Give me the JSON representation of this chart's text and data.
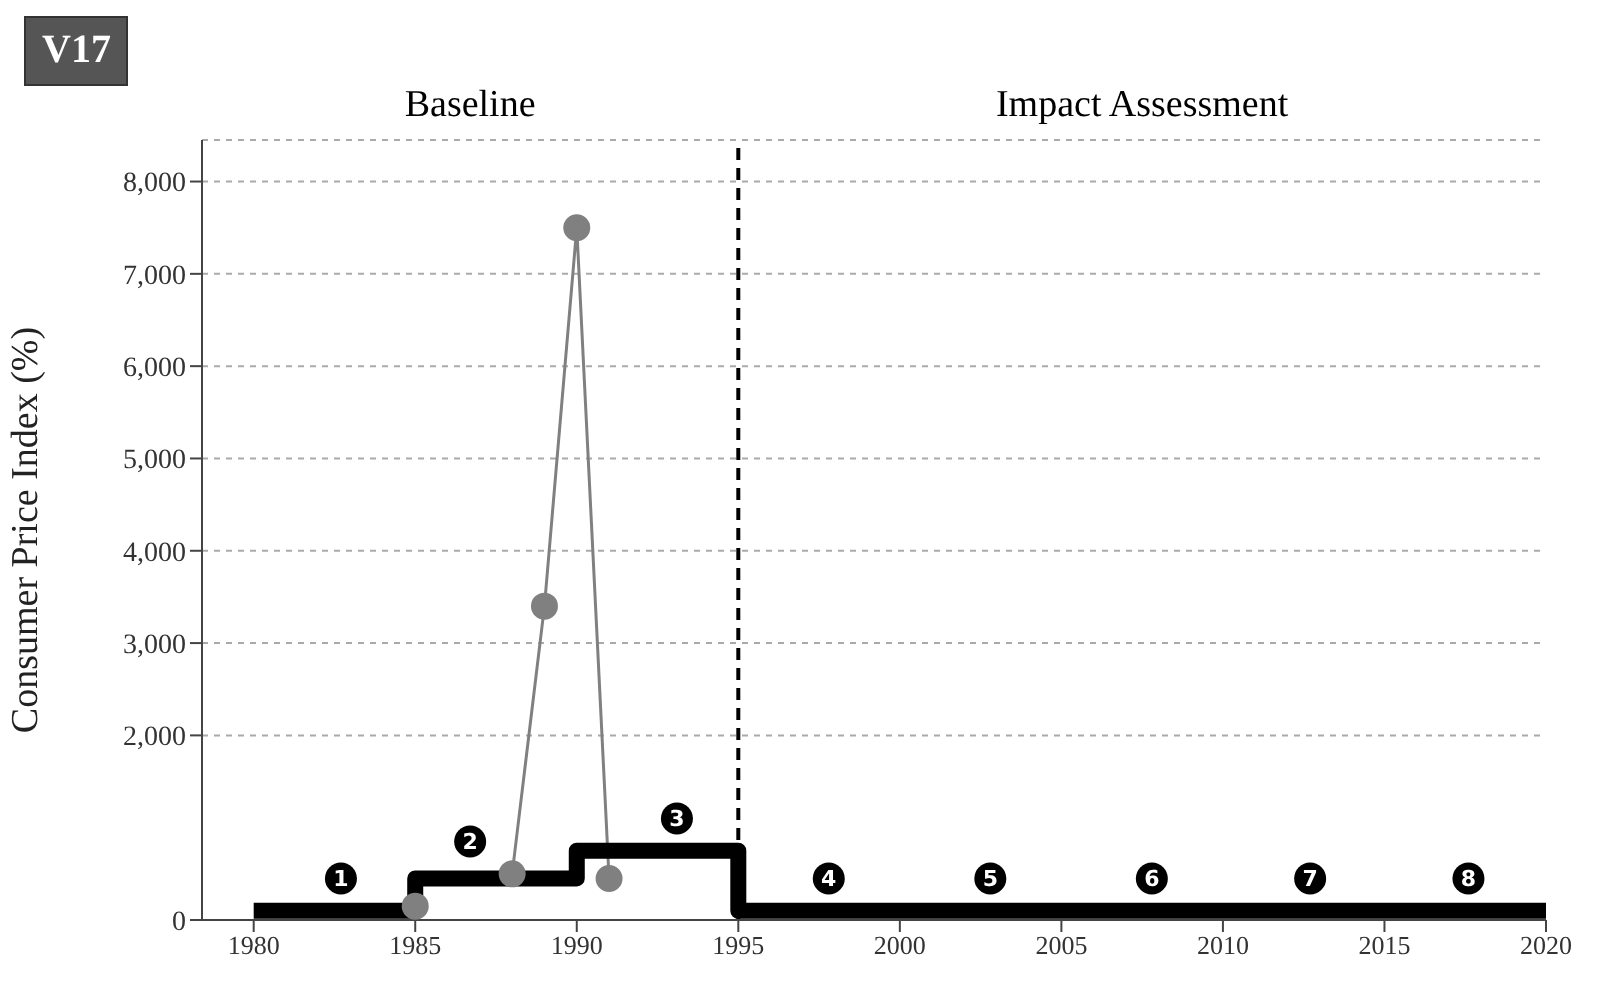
{
  "chart_data": {
    "type": "line",
    "title": "V17",
    "ylabel": "Consumer Price Index (%)",
    "xlim": [
      1978.4,
      2020
    ],
    "xticks": [
      1980,
      1985,
      1990,
      1995,
      2000,
      2005,
      2010,
      2015,
      2020
    ],
    "ylim": [
      0,
      8450
    ],
    "yticks": [
      0,
      {
        "value": 2000,
        "label": "2,000"
      },
      {
        "value": 3000,
        "label": "3,000"
      },
      {
        "value": 4000,
        "label": "4,000"
      },
      {
        "value": 5000,
        "label": "5,000"
      },
      {
        "value": 6000,
        "label": "6,000"
      },
      {
        "value": 7000,
        "label": "7,000"
      },
      {
        "value": 8000,
        "label": "8,000"
      }
    ],
    "grid": "y",
    "series": [
      {
        "color": "#808080",
        "marker": "circle",
        "x": [
          1985,
          1986,
          1987,
          1988,
          1989,
          1990,
          1991
        ],
        "values": [
          150,
          null,
          null,
          500,
          3400,
          7500,
          450
        ]
      },
      {
        "type": "step",
        "color": "#000000",
        "marker": "none",
        "x": [
          1980,
          1985,
          1990,
          1995,
          2020
        ],
        "values": [
          100,
          450,
          750,
          100,
          100
        ]
      }
    ],
    "ref_lines": [
      {
        "axis": "x",
        "value": 1995,
        "color": "#000000",
        "line_style": "dashed"
      }
    ],
    "annotations": [
      "Baseline",
      "Impact Assessment",
      {
        "text": "1",
        "x": 1982.7,
        "y": 450
      },
      {
        "text": "2",
        "x": 1986.7,
        "y": 850
      },
      {
        "text": "3",
        "x": 1993.1,
        "y": 1100
      },
      {
        "text": "4",
        "x": 1997.8,
        "y": 450
      },
      {
        "text": "5",
        "x": 2002.8,
        "y": 450
      },
      {
        "text": "6",
        "x": 2007.8,
        "y": 450
      },
      {
        "text": "7",
        "x": 2012.7,
        "y": 450
      },
      {
        "text": "8",
        "x": 2017.6,
        "y": 450
      }
    ]
  }
}
